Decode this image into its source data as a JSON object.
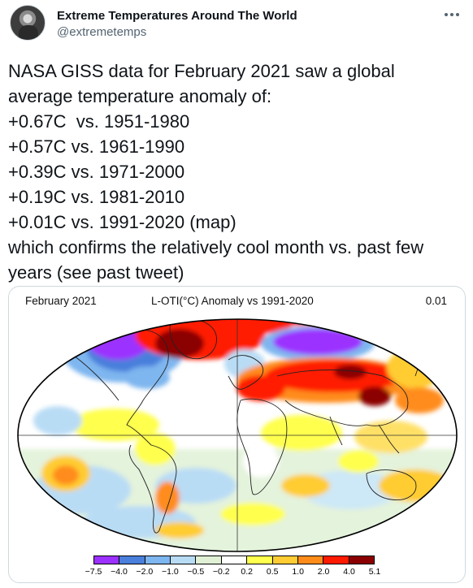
{
  "author": {
    "display_name": "Extreme Temperatures Around The World",
    "handle": "@extremetemps",
    "avatar_icon": "profile-photo"
  },
  "tweet": {
    "lines": [
      "NASA GISS data for February 2021 saw a global",
      "average temperature anomaly of:",
      "+0.67C  vs. 1951-1980",
      "+0.57C vs. 1961-1990",
      "+0.39C vs. 1971-2000",
      "+0.19C vs. 1981-2010",
      "+0.01C vs. 1991-2020 (map)",
      "which confirms the relatively cool month vs. past few",
      "years (see past tweet)"
    ]
  },
  "map": {
    "month": "February 2021",
    "title": "L-OTI(°C) Anomaly vs 1991-2020",
    "mean": "0.01",
    "legend": {
      "labels": [
        "−7.5",
        "−4.0",
        "−2.0",
        "−1.0",
        "−0.5",
        "−0.2",
        "0.2",
        "0.5",
        "1.0",
        "2.0",
        "4.0",
        "5.1"
      ],
      "colors": [
        "#9b30ff",
        "#4a7fdc",
        "#7eb6ef",
        "#b9dcf5",
        "#e0f1d5",
        "#ffffff",
        "#ffff4d",
        "#ffcc33",
        "#ff8c1a",
        "#ff1a00",
        "#8b0000"
      ]
    }
  }
}
